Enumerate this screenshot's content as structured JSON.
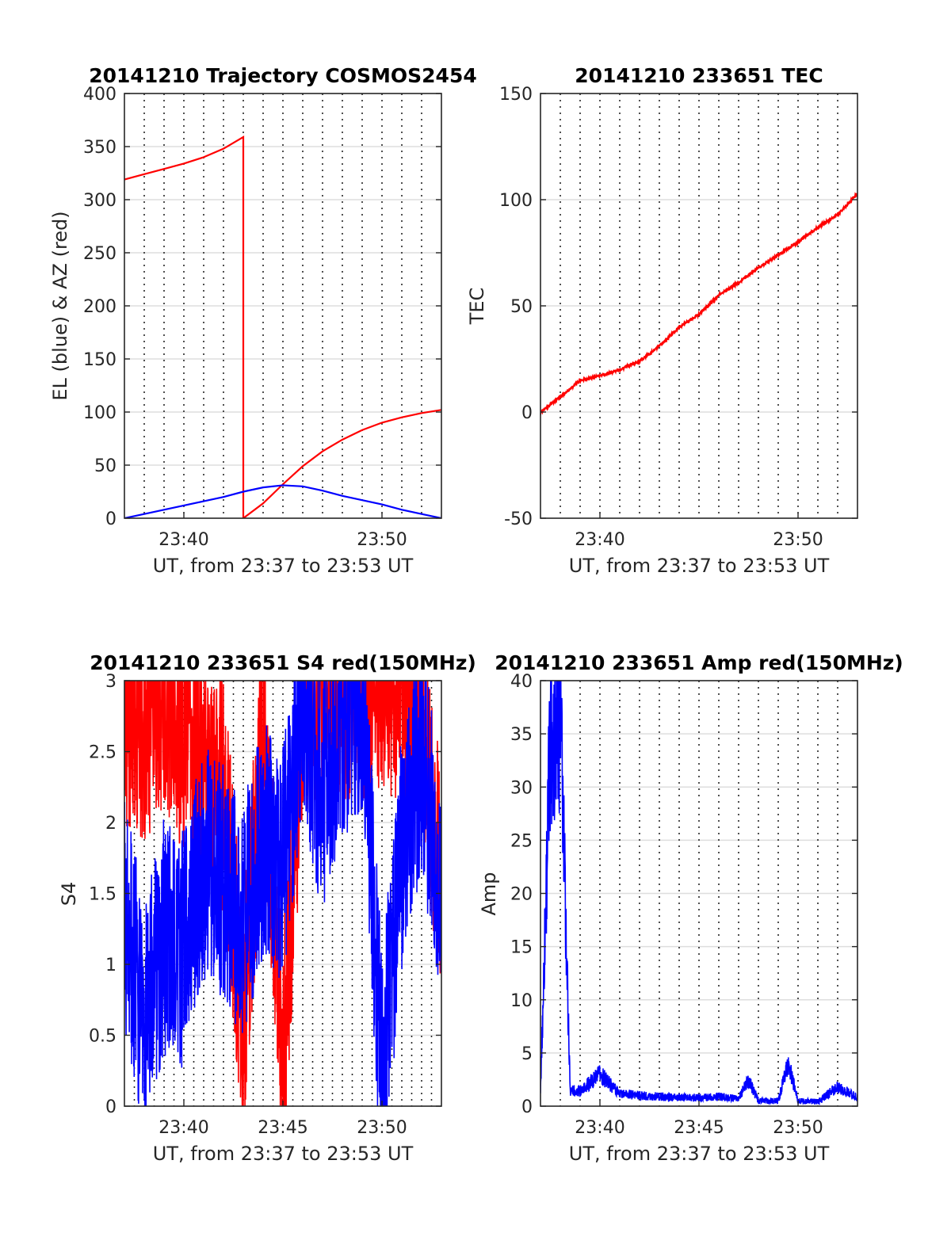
{
  "chart_data": [
    {
      "id": "trajectory",
      "type": "line",
      "title": "20141210 Trajectory COSMOS2454",
      "xlabel": "UT, from 23:37 to 23:53 UT",
      "ylabel": "EL (blue) & AZ (red)",
      "xlim": [
        "23:37",
        "23:53"
      ],
      "ylim": [
        0,
        400
      ],
      "yticks": [
        0,
        50,
        100,
        150,
        200,
        250,
        300,
        350,
        400
      ],
      "xticks": [
        "23:40",
        "23:50"
      ],
      "grid_y": true,
      "grid_x": "dotted, every 1 min",
      "series": [
        {
          "color": "#ff0000",
          "x": [
            "23:37",
            "23:38",
            "23:39",
            "23:40",
            "23:41",
            "23:42",
            "23:43",
            "23:43",
            "23:44",
            "23:45",
            "23:46",
            "23:47",
            "23:48",
            "23:49",
            "23:50",
            "23:51",
            "23:52",
            "23:53"
          ],
          "values": [
            319,
            324,
            329,
            334,
            340,
            348,
            359,
            0,
            14,
            32,
            49,
            63,
            74,
            83,
            90,
            95,
            99,
            102
          ]
        },
        {
          "color": "#0000ff",
          "x": [
            "23:37",
            "23:38",
            "23:39",
            "23:40",
            "23:41",
            "23:42",
            "23:43",
            "23:44",
            "23:45",
            "23:46",
            "23:47",
            "23:48",
            "23:49",
            "23:50",
            "23:51",
            "23:52",
            "23:53"
          ],
          "values": [
            0,
            4,
            8,
            12,
            16,
            20,
            25,
            29,
            31,
            30,
            26,
            21,
            17,
            13,
            8,
            4,
            0
          ]
        }
      ]
    },
    {
      "id": "tec",
      "type": "line",
      "title": "20141210 233651 TEC",
      "xlabel": "UT, from 23:37 to 23:53 UT",
      "ylabel": "TEC",
      "xlim": [
        "23:37",
        "23:53"
      ],
      "ylim": [
        -50,
        150
      ],
      "yticks": [
        -50,
        0,
        50,
        100,
        150
      ],
      "xticks": [
        "23:40",
        "23:50"
      ],
      "grid_y": true,
      "grid_x": "dotted, every 1 min",
      "series": [
        {
          "color": "#ff0000",
          "x": [
            "23:37",
            "23:38",
            "23:39",
            "23:40",
            "23:41",
            "23:42",
            "23:43",
            "23:44",
            "23:45",
            "23:46",
            "23:47",
            "23:48",
            "23:49",
            "23:50",
            "23:51",
            "23:52",
            "23:53"
          ],
          "values": [
            0,
            7,
            15,
            17,
            20,
            24,
            31,
            40,
            46,
            55,
            61,
            68,
            74,
            80,
            87,
            93,
            103
          ]
        }
      ]
    },
    {
      "id": "s4",
      "type": "line",
      "title": "20141210 233651 S4 red(150MHz)",
      "xlabel": "UT, from 23:37 to 23:53 UT",
      "ylabel": "S4",
      "xlim": [
        "23:37",
        "23:53"
      ],
      "ylim": [
        0,
        3
      ],
      "yticks": [
        0,
        0.5,
        1,
        1.5,
        2,
        2.5,
        3
      ],
      "xticks": [
        "23:40",
        "23:45",
        "23:50"
      ],
      "grid_y": true,
      "grid_x": "dotted, every 0.5 min",
      "series": [
        {
          "color": "#ff0000",
          "x": [
            "23:37",
            "23:38",
            "23:39",
            "23:40",
            "23:41",
            "23:42",
            "23:43",
            "23:44",
            "23:45",
            "23:46",
            "23:47",
            "23:48",
            "23:49",
            "23:50",
            "23:51",
            "23:52",
            "23:53"
          ],
          "values": [
            2.8,
            2.7,
            2.9,
            2.6,
            2.4,
            2.2,
            0.6,
            2.6,
            0.3,
            2.9,
            3.0,
            3.0,
            3.0,
            3.0,
            3.0,
            2.8,
            1.5
          ]
        },
        {
          "color": "#0000ff",
          "x": [
            "23:37",
            "23:38",
            "23:39",
            "23:40",
            "23:41",
            "23:42",
            "23:43",
            "23:44",
            "23:45",
            "23:46",
            "23:47",
            "23:48",
            "23:49",
            "23:50",
            "23:51",
            "23:52",
            "23:53"
          ],
          "values": [
            1.4,
            0.6,
            1.2,
            1.1,
            1.7,
            1.6,
            1.3,
            1.9,
            1.7,
            2.8,
            2.2,
            2.7,
            2.9,
            0.2,
            1.8,
            2.5,
            1.5
          ]
        }
      ]
    },
    {
      "id": "amp",
      "type": "line",
      "title": "20141210 233651 Amp red(150MHz)",
      "xlabel": "UT, from 23:37 to 23:53 UT",
      "ylabel": "Amp",
      "xlim": [
        "23:37",
        "23:53"
      ],
      "ylim": [
        0,
        40
      ],
      "yticks": [
        0,
        5,
        10,
        15,
        20,
        25,
        30,
        35,
        40
      ],
      "xticks": [
        "23:40",
        "23:45",
        "23:50"
      ],
      "grid_y": true,
      "grid_x": "dotted, every 1 min",
      "series": [
        {
          "color": "#0000ff",
          "x": [
            "23:37",
            "23:37.5",
            "23:38",
            "23:38.5",
            "23:39",
            "23:40",
            "23:41",
            "23:42",
            "23:43",
            "23:44",
            "23:45",
            "23:46",
            "23:47",
            "23:47.5",
            "23:48",
            "23:49",
            "23:49.5",
            "23:50",
            "23:51",
            "23:52",
            "23:53"
          ],
          "values": [
            1,
            35,
            37,
            1.5,
            1.4,
            3,
            1.2,
            1,
            0.9,
            0.8,
            0.8,
            0.9,
            0.7,
            2.5,
            0.5,
            0.5,
            4,
            0.5,
            0.4,
            1.8,
            0.8
          ]
        }
      ]
    }
  ]
}
